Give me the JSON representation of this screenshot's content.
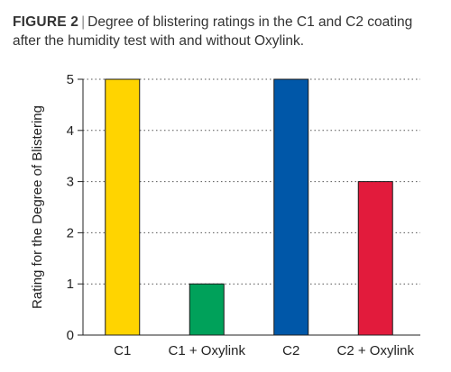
{
  "caption": {
    "figure_label": "FIGURE 2",
    "separator": "|",
    "text": "Degree of blistering ratings in the C1 and C2 coating after the humidity test with and without Oxylink."
  },
  "chart_data": {
    "type": "bar",
    "categories": [
      "C1",
      "C1 + Oxylink",
      "C2",
      "C2 + Oxylink"
    ],
    "values": [
      5,
      1,
      5,
      3
    ],
    "colors": [
      "#ffd400",
      "#00a15a",
      "#0057a8",
      "#e21b3c"
    ],
    "title": "",
    "xlabel": "",
    "ylabel": "Rating for the Degree of Blistering",
    "ylim": [
      0,
      5
    ],
    "yticks": [
      "0",
      "1",
      "2",
      "3",
      "4",
      "5"
    ],
    "grid": "horizontal-dotted",
    "legend": "none"
  }
}
